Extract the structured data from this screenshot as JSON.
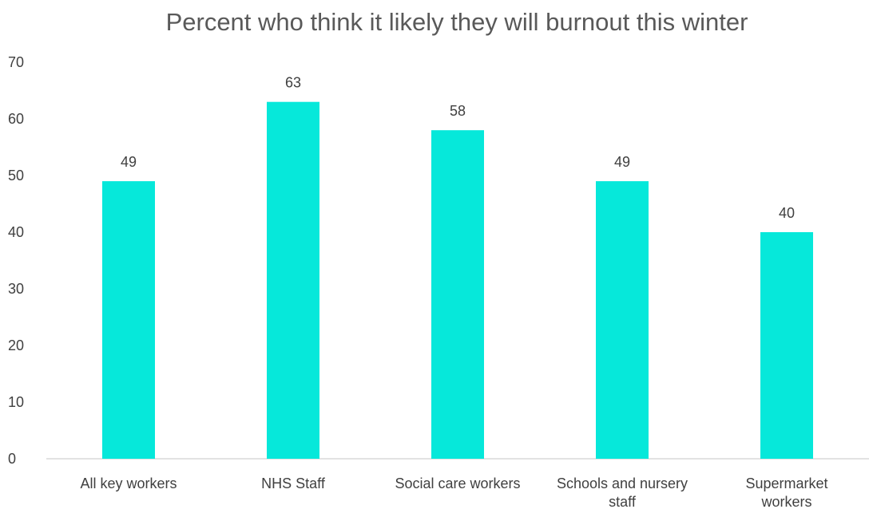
{
  "chart_data": {
    "type": "bar",
    "title": "Percent who think it likely they will burnout this winter",
    "categories": [
      "All key workers",
      "NHS Staff",
      "Social care workers",
      "Schools and nursery staff",
      "Supermarket workers"
    ],
    "category_lines": [
      [
        "All key workers"
      ],
      [
        "NHS Staff"
      ],
      [
        "Social care workers"
      ],
      [
        "Schools and nursery",
        "staff"
      ],
      [
        "Supermarket",
        "workers"
      ]
    ],
    "values": [
      49,
      63,
      58,
      49,
      40
    ],
    "data_labels": [
      "49",
      "63",
      "58",
      "49",
      "40"
    ],
    "xlabel": "",
    "ylabel": "",
    "ylim": [
      0,
      70
    ],
    "yticks": [
      0,
      10,
      20,
      30,
      40,
      50,
      60,
      70
    ],
    "grid": false,
    "legend": "none",
    "bar_color": "#06E8DA",
    "axis_color": "#D9D9D9"
  }
}
